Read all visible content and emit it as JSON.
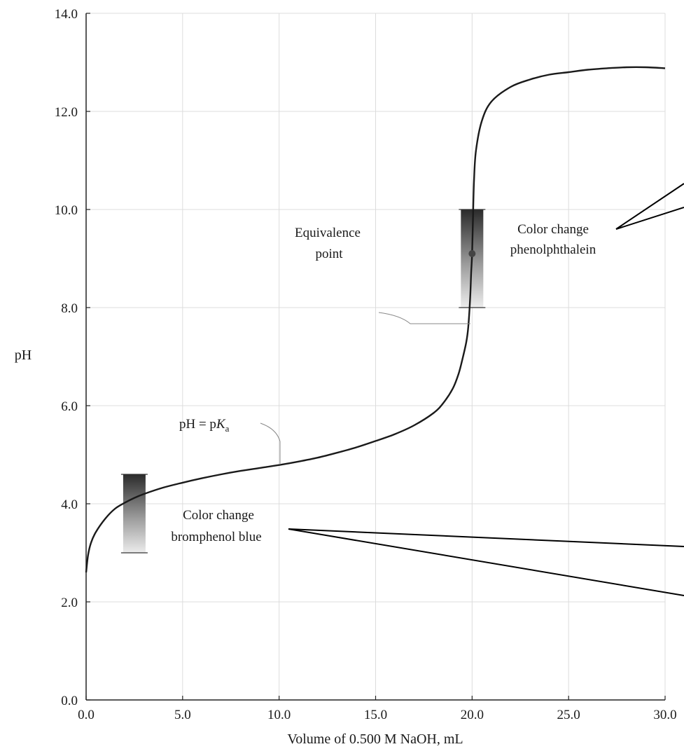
{
  "chart_data": {
    "type": "line",
    "title": "",
    "xlabel": "Volume of 0.500 M NaOH, mL",
    "ylabel": "pH",
    "xlim": [
      0,
      30
    ],
    "ylim": [
      0,
      14
    ],
    "grid": true,
    "x_ticks": [
      "0.0",
      "5.0",
      "10.0",
      "15.0",
      "20.0",
      "25.0",
      "30.0"
    ],
    "y_ticks": [
      "0.0",
      "2.0",
      "4.0",
      "6.0",
      "8.0",
      "10.0",
      "12.0",
      "14.0"
    ],
    "series": [
      {
        "x": [
          0.0,
          0.1,
          0.25,
          0.5,
          1.0,
          1.5,
          2.0,
          2.5,
          3.0,
          4.0,
          5.0,
          6.0,
          7.0,
          8.0,
          9.0,
          10.0,
          11.0,
          12.0,
          13.0,
          14.0,
          15.0,
          16.0,
          17.0,
          18.0,
          18.5,
          19.0,
          19.3,
          19.5,
          19.7,
          19.8,
          19.9,
          19.95,
          20.0,
          20.05,
          20.1,
          20.2,
          20.5,
          21.0,
          22.0,
          23.0,
          24.0,
          25.0,
          26.0,
          27.0,
          28.0,
          29.0,
          30.0
        ],
        "y": [
          2.6,
          2.95,
          3.2,
          3.42,
          3.7,
          3.9,
          4.02,
          4.12,
          4.2,
          4.33,
          4.43,
          4.52,
          4.6,
          4.67,
          4.73,
          4.79,
          4.86,
          4.94,
          5.04,
          5.15,
          5.28,
          5.42,
          5.6,
          5.85,
          6.05,
          6.35,
          6.65,
          6.95,
          7.3,
          7.6,
          8.2,
          8.7,
          9.1,
          9.9,
          10.6,
          11.2,
          11.8,
          12.2,
          12.5,
          12.65,
          12.75,
          12.8,
          12.85,
          12.88,
          12.9,
          12.9,
          12.88
        ]
      }
    ],
    "points": [
      {
        "x": 20.0,
        "y": 9.1
      }
    ],
    "indicator_ranges": [
      {
        "x": 2.5,
        "y_low": 3.0,
        "y_high": 4.6
      },
      {
        "x": 20.0,
        "y_low": 8.0,
        "y_high": 10.0
      }
    ],
    "annotations": {
      "equivalence_line1": "Equivalence",
      "equivalence_line2": "point",
      "pka_prefix": "pH = p",
      "pka_K": "K",
      "pka_sub": "a",
      "phenol_line1": "Color change",
      "phenol_line2": "phenolphthalein",
      "brom_line1": "Color change",
      "brom_line2": "bromphenol blue"
    },
    "colors": {
      "curve": "#1a1a1a",
      "grid": "#dcdcdc",
      "indicator_dark": "#2b2b2b",
      "indicator_light": "#ececec"
    }
  }
}
